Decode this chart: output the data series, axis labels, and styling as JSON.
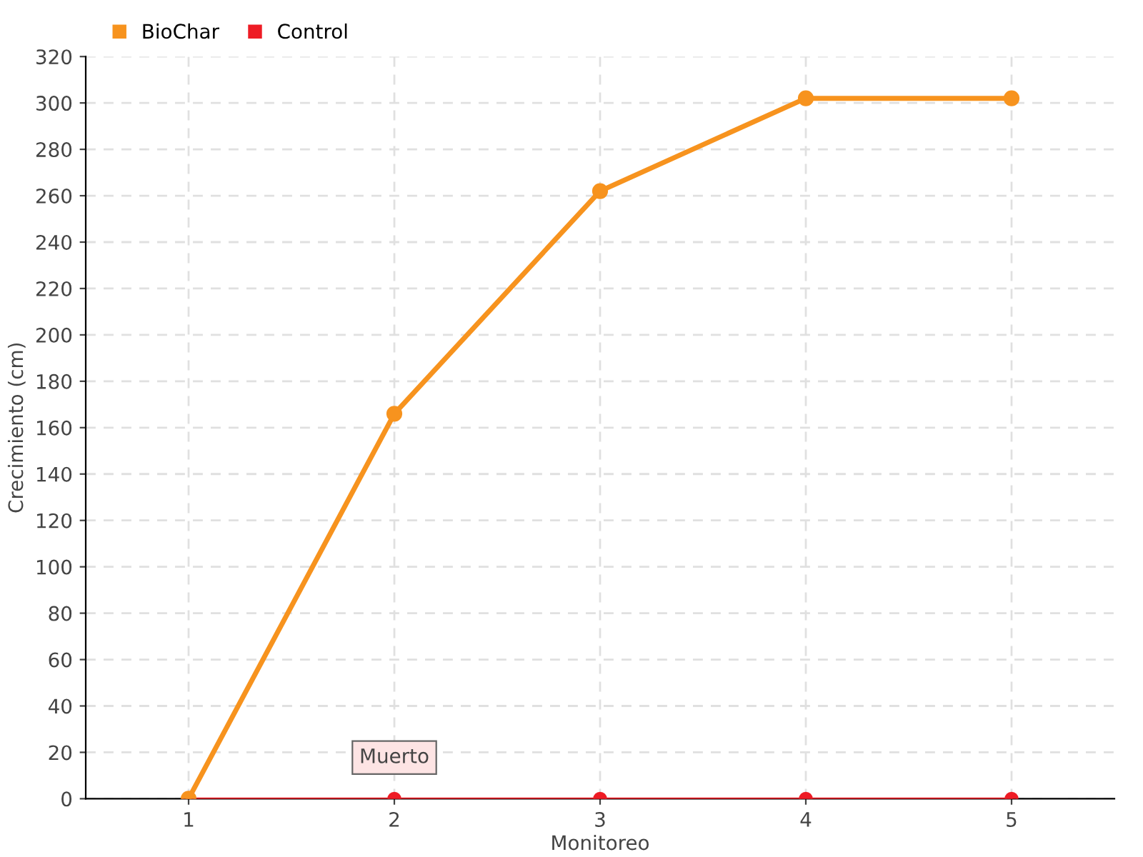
{
  "chart_data": {
    "type": "line",
    "xlabel": "Monitoreo",
    "ylabel": "Crecimiento (cm)",
    "categories": [
      "1",
      "2",
      "3",
      "4",
      "5"
    ],
    "series": [
      {
        "name": "BioChar",
        "color": "#f7931e",
        "values": [
          0,
          166,
          262,
          302,
          302
        ]
      },
      {
        "name": "Control",
        "color": "#ee1c25",
        "values": [
          0,
          0,
          0,
          0,
          0
        ]
      }
    ],
    "annotations": [
      {
        "text": "Muerto",
        "x": "2",
        "y": 0
      }
    ],
    "ylim": [
      0,
      320
    ],
    "yticks": [
      0,
      20,
      40,
      60,
      80,
      100,
      120,
      140,
      160,
      180,
      200,
      220,
      240,
      260,
      280,
      300,
      320
    ],
    "grid": true,
    "legend": "top left",
    "marker": "circle",
    "line_style": "solid"
  }
}
